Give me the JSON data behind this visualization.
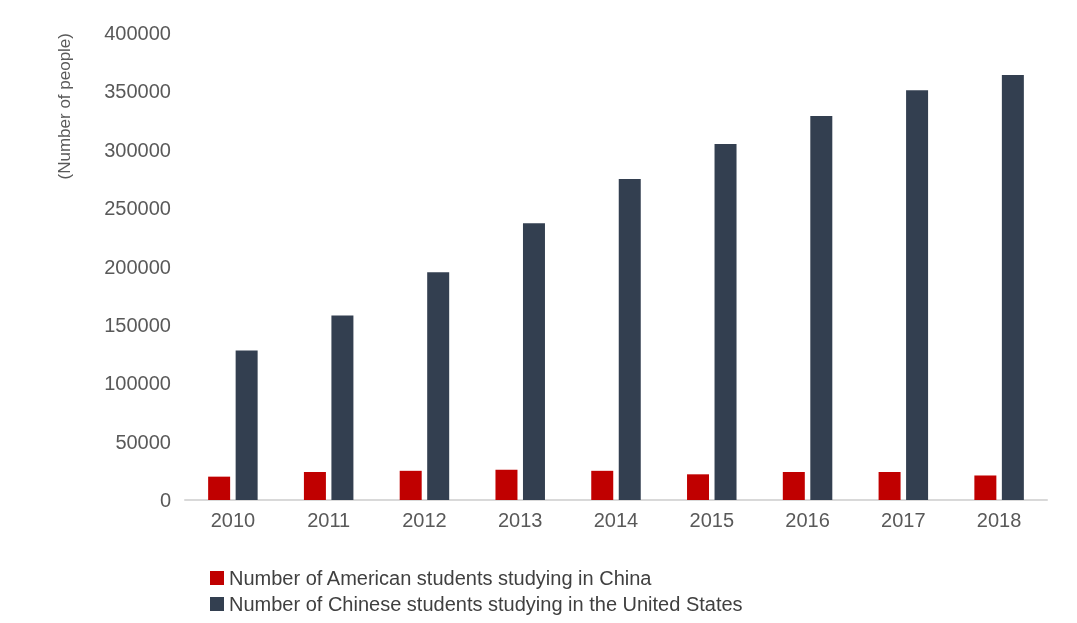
{
  "chart_data": {
    "type": "bar",
    "ylabel": "(Number of people)",
    "categories": [
      "2010",
      "2011",
      "2012",
      "2013",
      "2014",
      "2015",
      "2016",
      "2017",
      "2018"
    ],
    "series": [
      {
        "name": "Number of American students studying in China",
        "color": "#c00000",
        "values": [
          20000,
          24000,
          25000,
          26000,
          25000,
          22000,
          24000,
          24000,
          21000
        ]
      },
      {
        "name": "Number of Chinese students studying in the United States",
        "color": "#333f50",
        "values": [
          128000,
          158000,
          195000,
          237000,
          275000,
          305000,
          329000,
          351000,
          364000
        ]
      }
    ],
    "ylim": [
      0,
      400000
    ],
    "yticks": [
      0,
      50000,
      100000,
      150000,
      200000,
      250000,
      300000,
      350000,
      400000
    ],
    "grid": false,
    "legend": "bottom left"
  }
}
